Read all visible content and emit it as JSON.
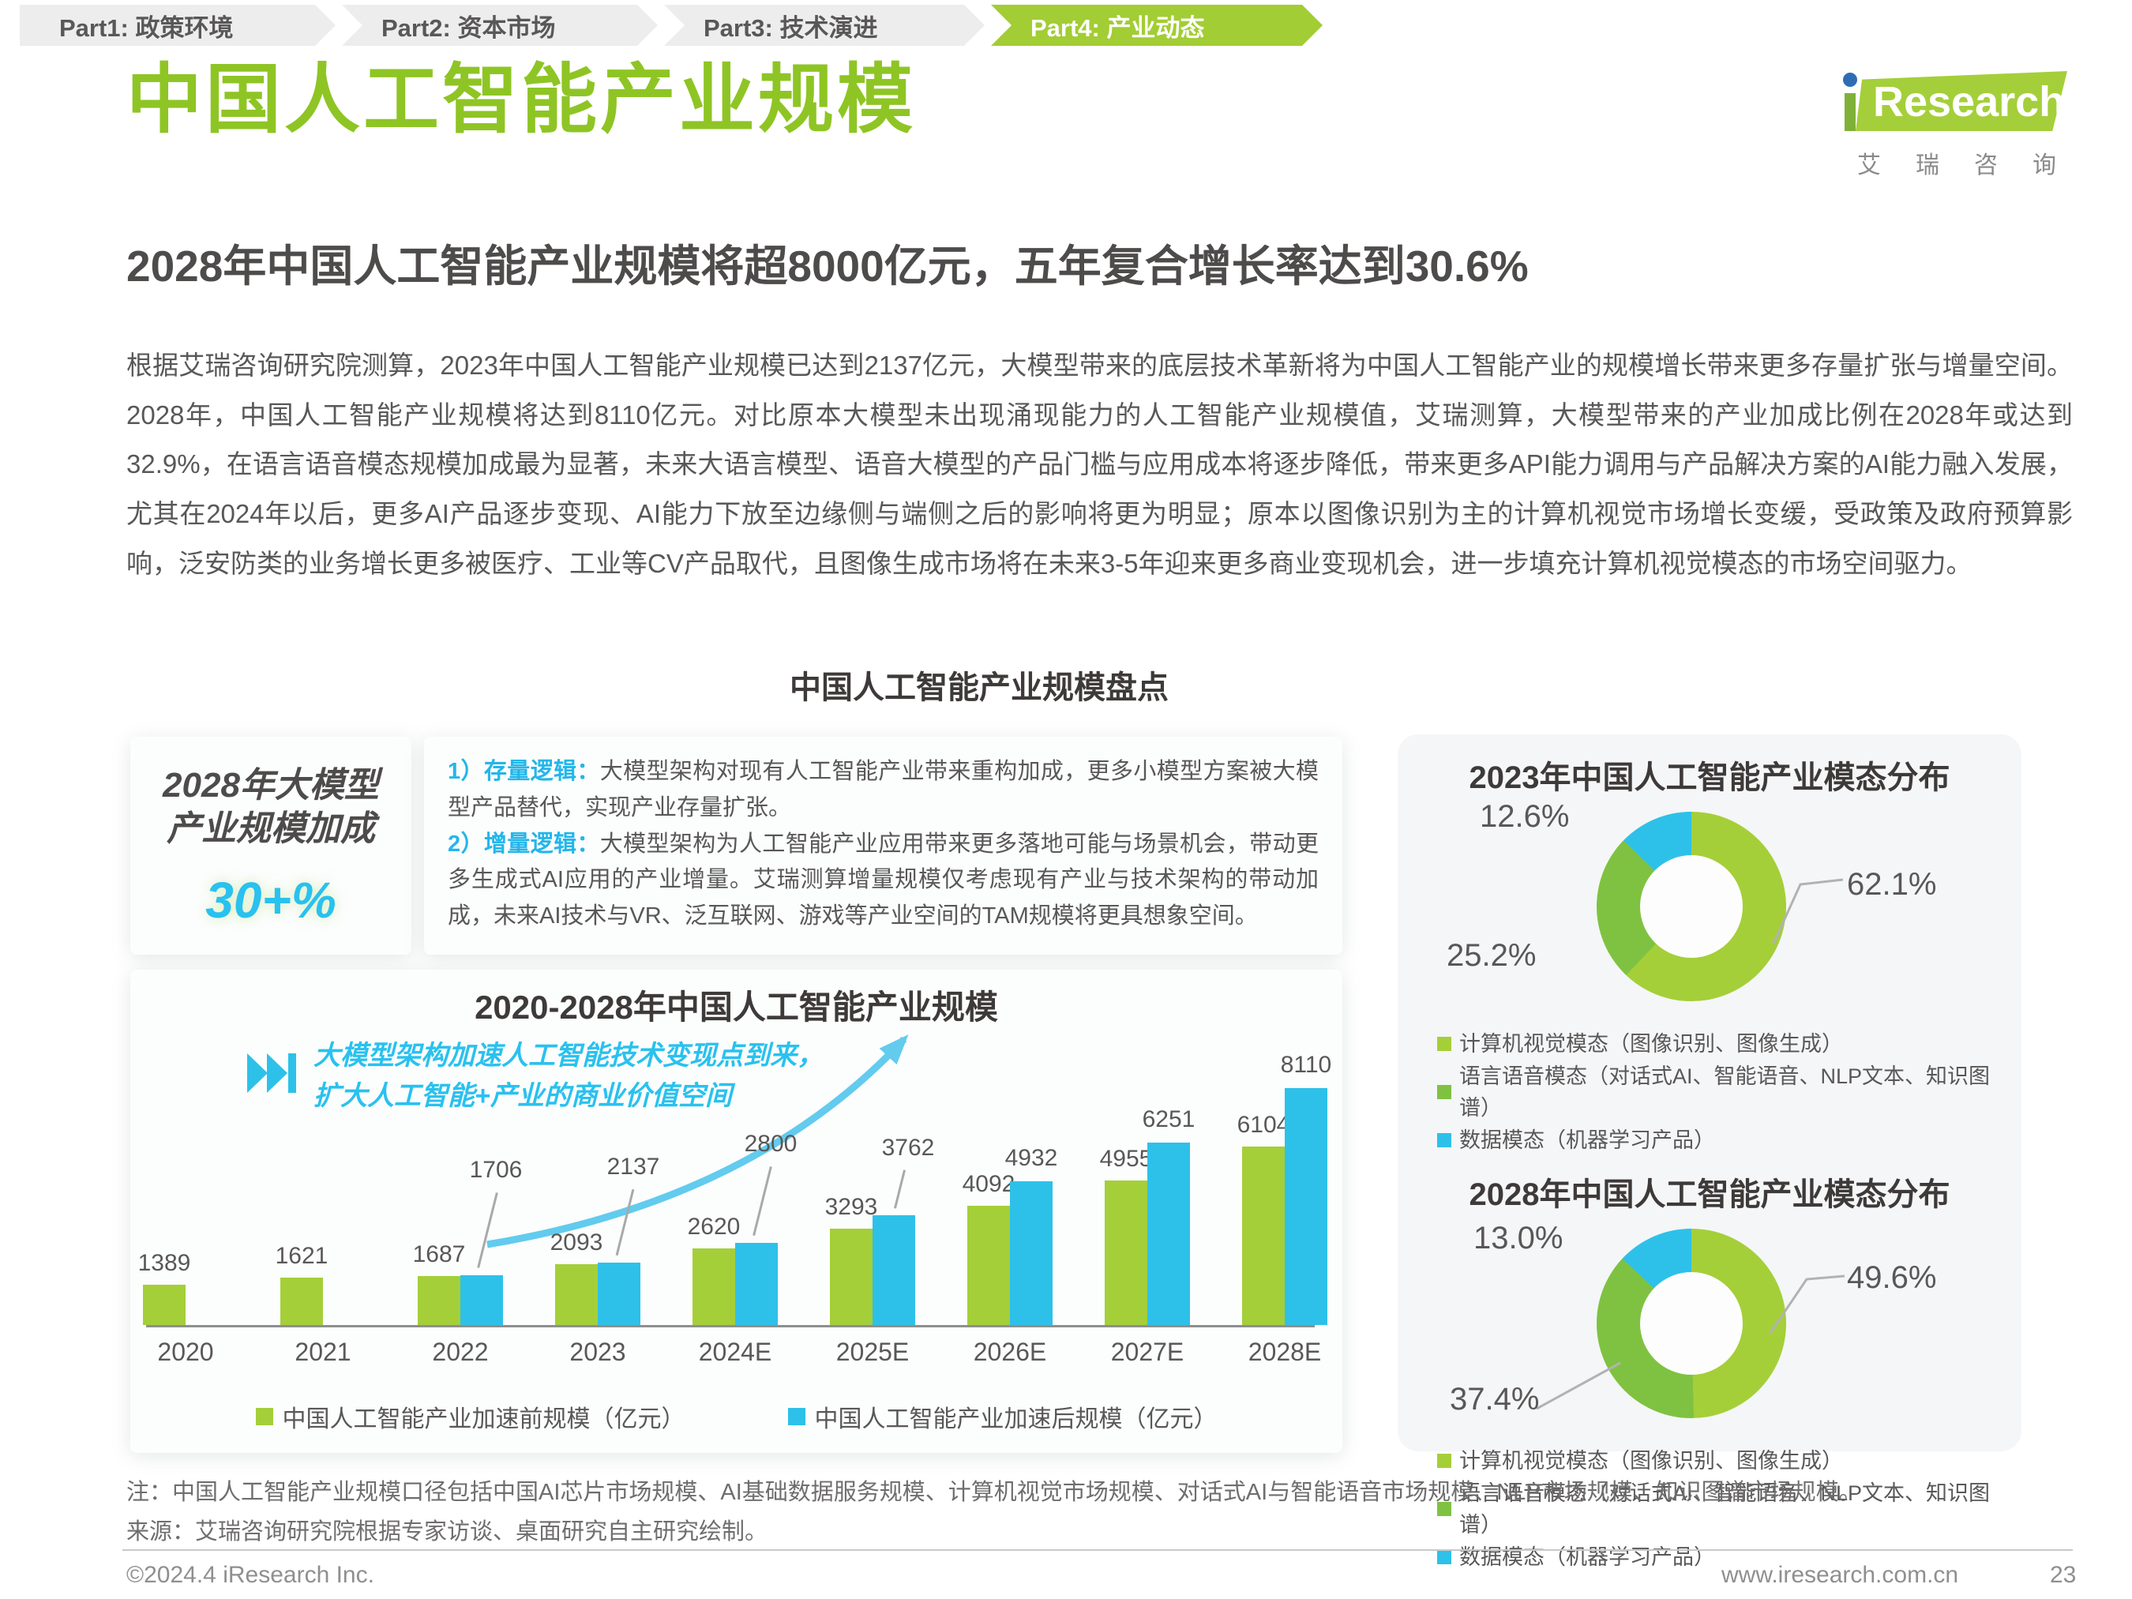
{
  "nav": {
    "tabs": [
      {
        "label": "Part1: 政策环境",
        "active": false
      },
      {
        "label": "Part2: 资本市场",
        "active": false
      },
      {
        "label": "Part3: 技术演进",
        "active": false
      },
      {
        "label": "Part4: 产业动态",
        "active": true
      }
    ]
  },
  "header": {
    "title": "中国人工智能产业规模",
    "logo": {
      "brand": "Research",
      "subtext": "艾瑞咨询"
    }
  },
  "subtitle": "2028年中国人工智能产业规模将超8000亿元，五年复合增长率达到30.6%",
  "body_paragraph": "根据艾瑞咨询研究院测算，2023年中国人工智能产业规模已达到2137亿元，大模型带来的底层技术革新将为中国人工智能产业的规模增长带来更多存量扩张与增量空间。2028年，中国人工智能产业规模将达到8110亿元。对比原本大模型未出现涌现能力的人工智能产业规模值，艾瑞测算，大模型带来的产业加成比例在2028年或达到32.9%，在语言语音模态规模加成最为显著，未来大语言模型、语音大模型的产品门槛与应用成本将逐步降低，带来更多API能力调用与产品解决方案的AI能力融入发展，尤其在2024年以后，更多AI产品逐步变现、AI能力下放至边缘侧与端侧之后的影响将更为明显；原本以图像识别为主的计算机视觉市场增长变缓，受政策及政府预算影响，泛安防类的业务增长更多被医疗、工业等CV产品取代，且图像生成市场将在未来3-5年迎来更多商业变现机会，进一步填充计算机视觉模态的市场空间驱力。",
  "section_heading": "中国人工智能产业规模盘点",
  "highlight_box": {
    "title_line1": "2028年大模型",
    "title_line2": "产业规模加成",
    "value": "30+%"
  },
  "logic_box": {
    "item1_label": "1）存量逻辑：",
    "item1_text": "大模型架构对现有人工智能产业带来重构加成，更多小模型方案被大模型产品替代，实现产业存量扩张。",
    "item2_label": "2）增量逻辑：",
    "item2_text": "大模型架构为人工智能产业应用带来更多落地可能与场景机会，带动更多生成式AI应用的产业增量。艾瑞测算增量规模仅考虑现有产业与技术架构的带动加成，未来AI技术与VR、泛互联网、游戏等产业空间的TAM规模将更具想象空间。"
  },
  "colors": {
    "brand_green": "#8ec524",
    "bar_green": "#a4cf39",
    "bar_blue": "#2dc1e9",
    "accent_cyan": "#29c1ef",
    "active_tab_green": "#a2cd34"
  },
  "chart_data": [
    {
      "type": "bar",
      "title": "2020-2028年中国人工智能产业规模",
      "annotation": "大模型架构加速人工智能技术变现点到来，扩大人工智能+产业的商业价值空间",
      "categories": [
        "2020",
        "2021",
        "2022",
        "2023",
        "2024E",
        "2025E",
        "2026E",
        "2027E",
        "2028E"
      ],
      "series": [
        {
          "name": "中国人工智能产业加速前规模（亿元）",
          "color": "#a4cf39",
          "values": [
            1389,
            1621,
            1687,
            2093,
            2620,
            3293,
            4092,
            4955,
            6104
          ]
        },
        {
          "name": "中国人工智能产业加速后规模（亿元）",
          "color": "#2dc1e9",
          "values": [
            null,
            null,
            1706,
            2137,
            2800,
            3762,
            4932,
            6251,
            8110
          ]
        }
      ],
      "ylim": [
        0,
        8110
      ],
      "grid": false,
      "legend_position": "bottom"
    },
    {
      "type": "pie",
      "title": "2023年中国人工智能产业模态分布",
      "labels": [
        "计算机视觉模态（图像识别、图像生成）",
        "语言语音模态（对话式AI、智能语音、NLP文本、知识图谱）",
        "数据模态（机器学习产品）"
      ],
      "values": [
        62.1,
        25.2,
        12.6
      ],
      "colors": [
        "#a4cf39",
        "#7fc241",
        "#2dc1e9"
      ]
    },
    {
      "type": "pie",
      "title": "2028年中国人工智能产业模态分布",
      "labels": [
        "计算机视觉模态（图像识别、图像生成）",
        "语言语音模态（对话式AI、智能语音、NLP文本、知识图谱）",
        "数据模态（机器学习产品）"
      ],
      "values": [
        49.6,
        37.4,
        13.0
      ],
      "colors": [
        "#a4cf39",
        "#7fc241",
        "#2dc1e9"
      ]
    }
  ],
  "notes": {
    "note": "注：中国人工智能产业规模口径包括中国AI芯片市场规模、AI基础数据服务规模、计算机视觉市场规模、对话式AI与智能语音市场规模、NLP市场规模、知识图谱市场规模。",
    "source": "来源：艾瑞咨询研究院根据专家访谈、桌面研究自主研究绘制。"
  },
  "footer": {
    "copyright": "©2024.4 iResearch Inc.",
    "website": "www.iresearch.com.cn",
    "page": "23"
  }
}
